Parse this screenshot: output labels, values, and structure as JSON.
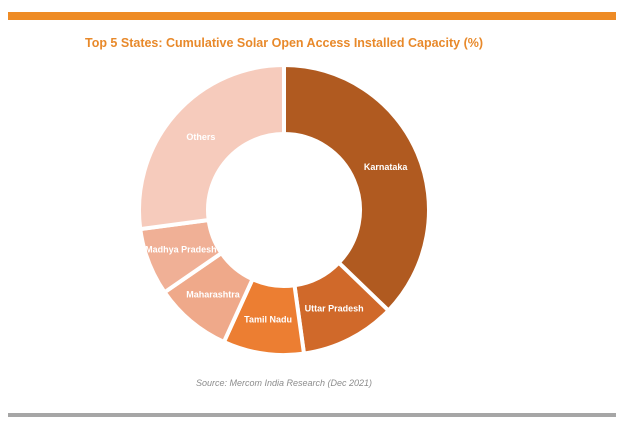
{
  "chart_data": {
    "type": "pie",
    "variant": "donut",
    "title": "Top 5 States: Cumulative Solar Open Access Installed Capacity (%)",
    "categories": [
      "Karnataka",
      "Uttar Pradesh",
      "Tamil Nadu",
      "Maharashtra",
      "Madhya Pradesh",
      "Others"
    ],
    "values": [
      37.2,
      10.6,
      9.0,
      8.6,
      7.5,
      27.1
    ],
    "colors": [
      "#B05A20",
      "#D0692A",
      "#EC7E32",
      "#EFA98A",
      "#F0B096",
      "#F6CBBC"
    ],
    "source": "Source: Mercom  India Research (Dec 2021)",
    "legend": "none (data labels on slices)"
  }
}
